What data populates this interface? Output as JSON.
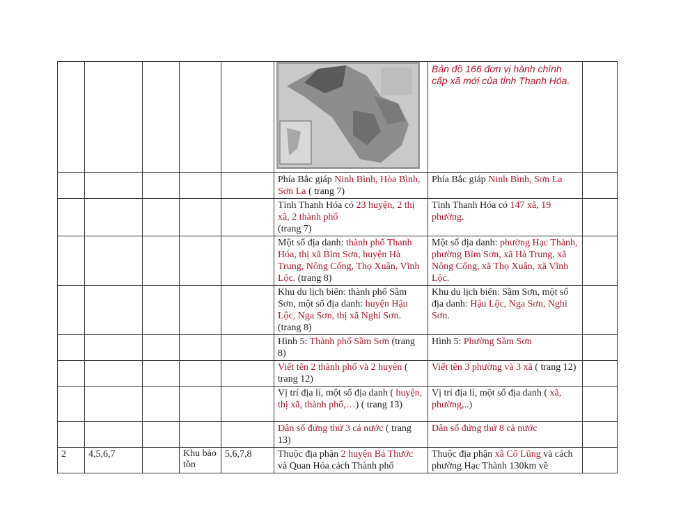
{
  "map_caption": "Bản đồ 166 đơn vị hành chính cấp xã mới của tỉnh Thanh Hóa.",
  "map_image": "map-of-thanh-hoa-province",
  "colors": {
    "highlight": "#a3182c",
    "text": "#222222"
  },
  "rows": [
    {
      "old": [
        {
          "t": "Phía Bắc giáp "
        },
        {
          "t": "Ninh Bình, Hòa Bình, Sơn La",
          "r": 1
        },
        {
          "t": " ( trang 7)"
        }
      ],
      "new": [
        {
          "t": "Phía Bắc giáp "
        },
        {
          "t": "Ninh Bình, Sơn La",
          "r": 1
        }
      ]
    },
    {
      "old": [
        {
          "t": "Tỉnh Thanh Hóa có "
        },
        {
          "t": "23 huyện, 2 thị xã, 2 thành phố",
          "r": 1
        },
        {
          "t": "\n (trang 7)"
        }
      ],
      "new": [
        {
          "t": "Tỉnh Thanh Hóa có "
        },
        {
          "t": "147 xã",
          "r": 1
        },
        {
          "t": ", "
        },
        {
          "t": "19 phường",
          "r": 1
        },
        {
          "t": "."
        }
      ]
    },
    {
      "old": [
        {
          "t": "Một số địa danh: "
        },
        {
          "t": "thành phố Thanh Hóa, thị xã Bỉm Sơn, huyện Hà Trung, Nông Cống, Thọ Xuân, Vĩnh Lộc.",
          "r": 1
        },
        {
          "t": " (trang 8)"
        }
      ],
      "new": [
        {
          "t": "Một số địa danh: "
        },
        {
          "t": "phường Hạc Thành, phường Bỉm Sơn, xã Hà Trung, xã Nông Cống, xã Thọ Xuân, xã Vĩnh Lộc.",
          "r": 1
        }
      ]
    },
    {
      "old": [
        {
          "t": "Khu du lịch biển: thành phố Sầm Sơn, một số địa danh: "
        },
        {
          "t": "huyện Hậu Lộc, Nga Sơn, thị xã Nghi Sơn",
          "r": 1
        },
        {
          "t": ". (trang 8)"
        }
      ],
      "new": [
        {
          "t": "Khu du lịch biển: Sầm Sơn, một số địa danh: "
        },
        {
          "t": "Hậu Lộc, Nga Sơn, Nghi Sơn",
          "r": 1
        },
        {
          "t": "."
        }
      ]
    },
    {
      "old": [
        {
          "t": "Hình 5: "
        },
        {
          "t": "Thành phố Sầm Sơn",
          "r": 1
        },
        {
          "t": " (trang 8)"
        }
      ],
      "new": [
        {
          "t": "Hình 5: "
        },
        {
          "t": "Phường Sầm Sơn",
          "r": 1
        }
      ]
    },
    {
      "old": [
        {
          "t": "Viết tên 2 thành phố và 2 huyện",
          "r": 1
        },
        {
          "t": " ( trang 12)"
        }
      ],
      "new": [
        {
          "t": "Viết tên 3 phường và 3 xã",
          "r": 1
        },
        {
          "t": " ( trang 12)"
        }
      ]
    },
    {
      "old": [
        {
          "t": "Vị trí địa lí, một số địa danh ( "
        },
        {
          "t": "huyện, thị xã, thành phố,…",
          "r": 1
        },
        {
          "t": ") ( trang 13)"
        }
      ],
      "new": [
        {
          "t": "Vị trí địa lí, một số địa danh ( "
        },
        {
          "t": "xã, phường,..",
          "r": 1
        },
        {
          "t": ")"
        }
      ]
    },
    {
      "old": [
        {
          "t": "Dân số đứng thứ 3 cả nước",
          "r": 1
        },
        {
          "t": " ( trang 13)"
        }
      ],
      "new": [
        {
          "t": "Dân số đứng thứ 8 cả nước",
          "r": 1
        }
      ]
    }
  ],
  "last_row": {
    "c1": "2",
    "c2": "4,5,6,7",
    "c3": "",
    "c4": "Khu bảo tồn",
    "c5": "5,6,7,8",
    "old": [
      {
        "t": "Thuộc địa phận "
      },
      {
        "t": "2 huyện Bá Thước",
        "r": 1
      },
      {
        "t": " và Quan Hóa cách Thành phố"
      }
    ],
    "new": [
      {
        "t": "Thuộc địa phận "
      },
      {
        "t": "xã Cổ Lũng",
        "r": 1
      },
      {
        "t": " và cách phường Hạc Thành 130km về"
      }
    ]
  }
}
